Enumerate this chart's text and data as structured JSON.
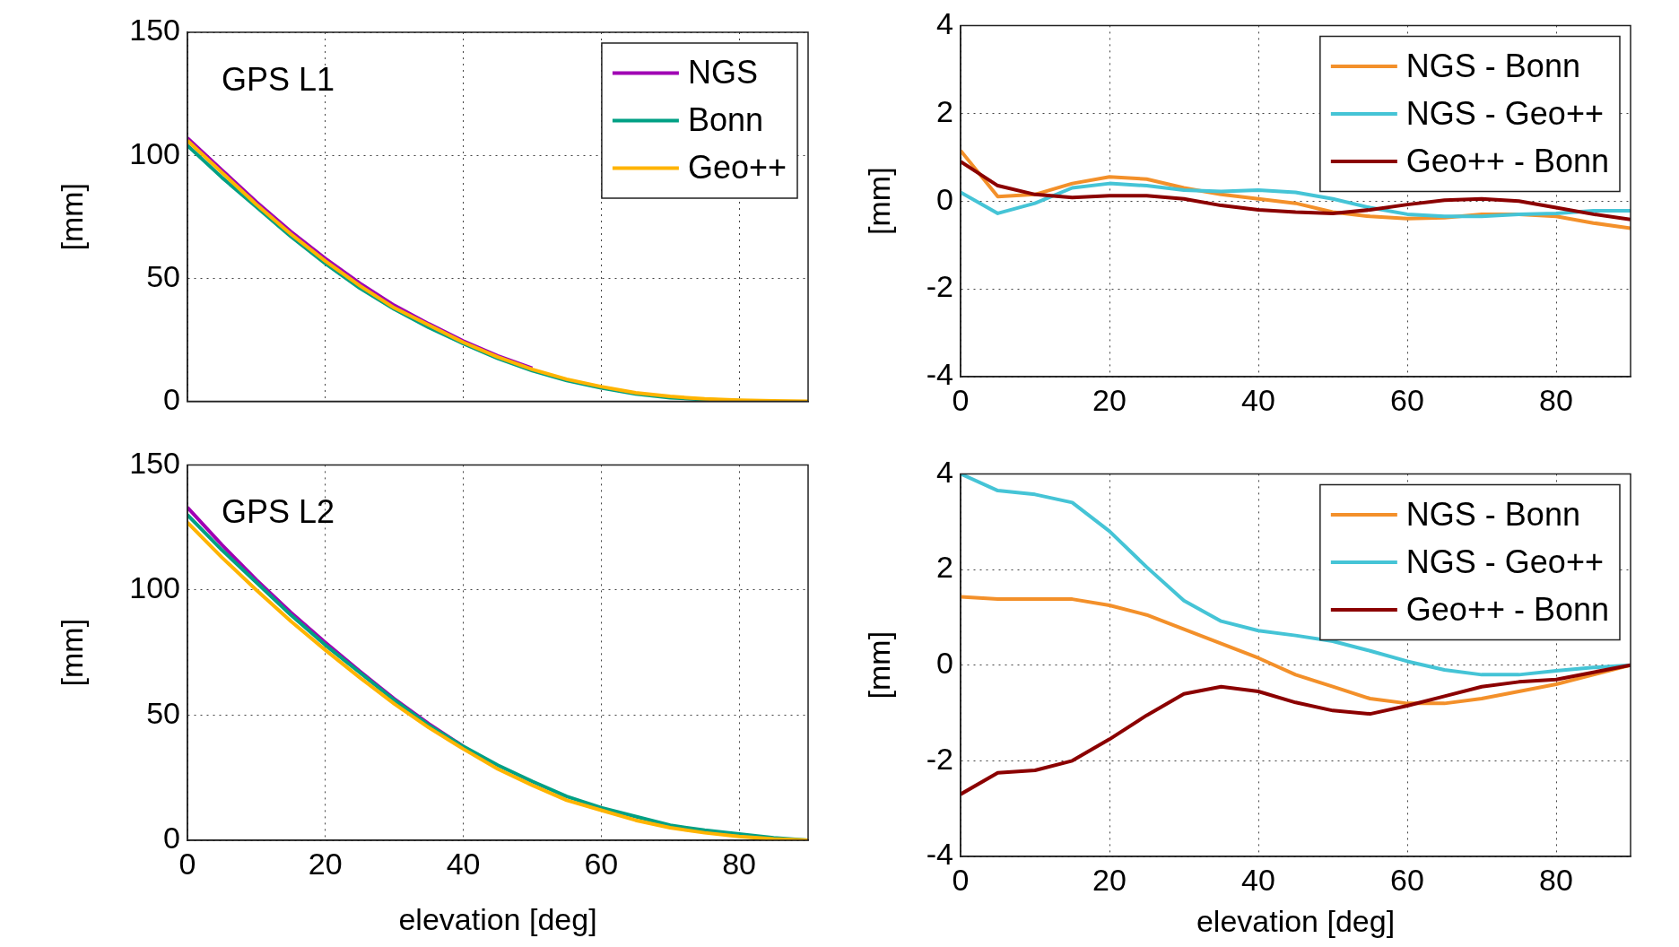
{
  "chart_data": [
    {
      "type": "line",
      "title": "GPS L1",
      "ylabel": "[mm]",
      "x": [
        0,
        5,
        10,
        15,
        20,
        25,
        30,
        35,
        40,
        45,
        50,
        55,
        60,
        65,
        70,
        75,
        80,
        85,
        90
      ],
      "xlim": [
        0,
        90
      ],
      "xticks": [
        0,
        20,
        40,
        60,
        80
      ],
      "ylim": [
        0,
        150
      ],
      "yticks": [
        0,
        50,
        100,
        150
      ],
      "grid": true,
      "legend": "top right",
      "tick_labels": "y",
      "series": [
        {
          "name": "NGS",
          "color": "#a000b4",
          "values": [
            107,
            94,
            81,
            69,
            58,
            48,
            39,
            31.5,
            24.5,
            18.5,
            13.5,
            null,
            null,
            null,
            null,
            null,
            null,
            null,
            null
          ]
        },
        {
          "name": "Bonn",
          "color": "#00a084",
          "values": [
            104,
            91,
            79,
            67,
            56,
            46,
            37.5,
            30,
            23.5,
            17.5,
            12.5,
            8.5,
            5.5,
            3,
            1.5,
            0.8,
            0.3,
            null,
            null
          ]
        },
        {
          "name": "Geo++",
          "color": "#ffb400",
          "values": [
            106,
            93,
            80,
            68,
            57,
            47,
            38,
            31,
            24,
            18,
            13,
            9,
            6,
            3.5,
            2,
            1,
            0.5,
            0.2,
            0
          ]
        }
      ]
    },
    {
      "type": "line",
      "ylabel": "[mm]",
      "x": [
        0,
        5,
        10,
        15,
        20,
        25,
        30,
        35,
        40,
        45,
        50,
        55,
        60,
        65,
        70,
        75,
        80,
        85,
        90
      ],
      "xlim": [
        0,
        90
      ],
      "xticks": [
        0,
        20,
        40,
        60,
        80
      ],
      "ylim": [
        -4,
        4
      ],
      "yticks": [
        -4,
        -2,
        0,
        2,
        4
      ],
      "grid": true,
      "legend": "top right",
      "series": [
        {
          "name": "NGS - Bonn",
          "color": "#f3902a",
          "values": [
            1.15,
            0.1,
            0.15,
            0.4,
            0.55,
            0.5,
            0.3,
            0.15,
            0.05,
            -0.05,
            -0.25,
            -0.35,
            -0.4,
            -0.38,
            -0.3,
            -0.3,
            -0.35,
            -0.5,
            -0.62
          ]
        },
        {
          "name": "NGS - Geo++",
          "color": "#45c4d6",
          "values": [
            0.2,
            -0.28,
            -0.05,
            0.3,
            0.4,
            0.35,
            0.25,
            0.22,
            0.25,
            0.2,
            0.05,
            -0.15,
            -0.3,
            -0.35,
            -0.35,
            -0.3,
            -0.28,
            -0.22,
            -0.22
          ]
        },
        {
          "name": "Geo++ - Bonn",
          "color": "#8b0000",
          "values": [
            0.9,
            0.35,
            0.15,
            0.08,
            0.12,
            0.12,
            0.05,
            -0.1,
            -0.2,
            -0.25,
            -0.28,
            -0.2,
            -0.08,
            0.02,
            0.05,
            0,
            -0.15,
            -0.3,
            -0.42
          ]
        }
      ]
    },
    {
      "type": "line",
      "title": "GPS L2",
      "xlabel": "elevation [deg]",
      "ylabel": "[mm]",
      "x": [
        0,
        5,
        10,
        15,
        20,
        25,
        30,
        35,
        40,
        45,
        50,
        55,
        60,
        65,
        70,
        75,
        80,
        85,
        90
      ],
      "xlim": [
        0,
        90
      ],
      "xticks": [
        0,
        20,
        40,
        60,
        80
      ],
      "ylim": [
        0,
        150
      ],
      "yticks": [
        0,
        50,
        100,
        150
      ],
      "grid": true,
      "legend": false,
      "series": [
        {
          "color": "#a000b4",
          "values": [
            133,
            118,
            104,
            91,
            79,
            67.5,
            56.5,
            46.5,
            37.5,
            null,
            null,
            null,
            null,
            null,
            null,
            null,
            null,
            null,
            null
          ]
        },
        {
          "color": "#00a084",
          "values": [
            130,
            116,
            103,
            90,
            78,
            67,
            56,
            46,
            37.5,
            30,
            23.5,
            17.5,
            13,
            9.5,
            6,
            4,
            2.5,
            1,
            0
          ]
        },
        {
          "color": "#ffb400",
          "values": [
            127,
            113,
            100,
            87.5,
            76,
            65,
            54.5,
            45,
            36.5,
            28.5,
            22,
            16,
            12,
            8,
            5,
            3,
            1.5,
            0.5,
            0
          ]
        }
      ]
    },
    {
      "type": "line",
      "xlabel": "elevation [deg]",
      "ylabel": "[mm]",
      "x": [
        0,
        5,
        10,
        15,
        20,
        25,
        30,
        35,
        40,
        45,
        50,
        55,
        60,
        65,
        70,
        75,
        80,
        85,
        90
      ],
      "xlim": [
        0,
        90
      ],
      "xticks": [
        0,
        20,
        40,
        60,
        80
      ],
      "ylim": [
        -4,
        4
      ],
      "yticks": [
        -4,
        -2,
        0,
        2,
        4
      ],
      "grid": true,
      "legend": "top right",
      "series": [
        {
          "name": "NGS - Bonn",
          "color": "#f3902a",
          "values": [
            1.43,
            1.38,
            1.38,
            1.38,
            1.25,
            1.05,
            0.75,
            0.45,
            0.15,
            -0.2,
            -0.45,
            -0.7,
            -0.8,
            -0.8,
            -0.7,
            -0.55,
            -0.4,
            -0.2,
            0
          ]
        },
        {
          "name": "NGS - Geo++",
          "color": "#45c4d6",
          "values": [
            4,
            3.65,
            3.57,
            3.4,
            2.8,
            2.05,
            1.35,
            0.92,
            0.72,
            0.62,
            0.5,
            0.3,
            0.08,
            -0.1,
            -0.2,
            -0.2,
            -0.12,
            -0.05,
            0
          ]
        },
        {
          "name": "Geo++ - Bonn",
          "color": "#8b0000",
          "values": [
            -2.7,
            -2.25,
            -2.2,
            -2,
            -1.55,
            -1.05,
            -0.6,
            -0.45,
            -0.55,
            -0.78,
            -0.95,
            -1.02,
            -0.85,
            -0.65,
            -0.45,
            -0.35,
            -0.3,
            -0.15,
            0
          ]
        }
      ]
    }
  ]
}
